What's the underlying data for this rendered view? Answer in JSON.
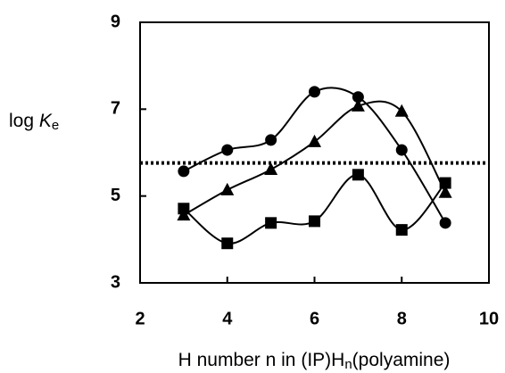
{
  "chart_data": {
    "type": "line",
    "y_label_parts": [
      "log ",
      "K",
      "e"
    ],
    "x_label_parts": [
      "H number n in (IP)H",
      "n",
      "(polyamine)"
    ],
    "x": [
      3,
      4,
      5,
      6,
      7,
      8,
      9
    ],
    "series": [
      {
        "marker": "circle",
        "color": "#000000",
        "values": [
          5.57,
          6.06,
          6.29,
          7.4,
          7.28,
          6.06,
          4.38
        ]
      },
      {
        "marker": "triangle",
        "color": "#000000",
        "values": [
          4.56,
          5.14,
          5.61,
          6.25,
          7.07,
          6.95,
          5.08
        ]
      },
      {
        "marker": "square",
        "color": "#000000",
        "values": [
          4.71,
          3.91,
          4.38,
          4.42,
          5.49,
          4.22,
          5.3
        ]
      }
    ],
    "reference_line": {
      "y": 5.76,
      "style": "dotted"
    },
    "smooth": true,
    "xlim": [
      2,
      10
    ],
    "xticks": [
      2,
      4,
      6,
      8,
      10
    ],
    "ylim": [
      3,
      9
    ],
    "yticks": [
      3,
      5,
      7,
      9
    ],
    "grid": false
  }
}
